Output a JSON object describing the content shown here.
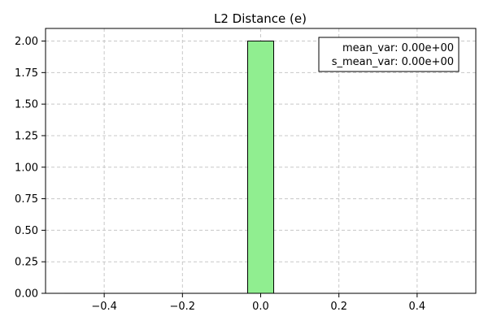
{
  "chart_data": {
    "type": "bar",
    "title": "L2 Distance (e)",
    "xlabel": "",
    "ylabel": "",
    "xlim": [
      -0.55,
      0.55
    ],
    "ylim": [
      0,
      2.1
    ],
    "xticks": [
      -0.4,
      -0.2,
      0.0,
      0.2,
      0.4
    ],
    "xtick_labels": [
      "−0.4",
      "−0.2",
      "0.0",
      "0.2",
      "0.4"
    ],
    "yticks": [
      0.0,
      0.25,
      0.5,
      0.75,
      1.0,
      1.25,
      1.5,
      1.75,
      2.0
    ],
    "ytick_labels": [
      "0.00",
      "0.25",
      "0.50",
      "0.75",
      "1.00",
      "1.25",
      "1.50",
      "1.75",
      "2.00"
    ],
    "bins": [
      {
        "x0": -0.5,
        "x1": -0.0333,
        "count": 0
      },
      {
        "x0": -0.0333,
        "x1": 0.0333,
        "count": 2
      },
      {
        "x0": 0.0333,
        "x1": 0.5,
        "count": 0
      }
    ],
    "grid": true,
    "bar_color": "#90ee90",
    "bar_edge_color": "#000000",
    "annotation": {
      "lines": [
        "mean_var: 0.00e+00",
        "s_mean_var: 0.00e+00"
      ],
      "placement": "top-right"
    }
  }
}
